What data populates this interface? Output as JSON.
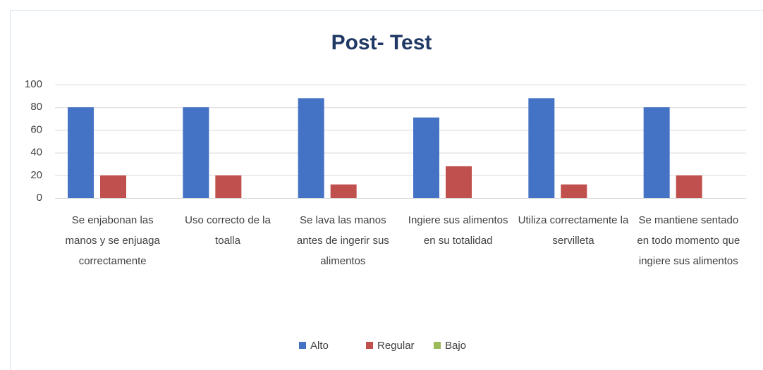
{
  "chart_data": {
    "type": "bar",
    "title": "Post- Test",
    "categories": [
      "Se enjabonan las manos y se enjuaga correctamente",
      "Uso correcto de la toalla",
      "Se lava las manos antes de ingerir sus alimentos",
      "Ingiere sus alimentos en su totalidad",
      "Utiliza correctamente la servilleta",
      "Se mantiene sentado en todo momento que ingiere sus alimentos"
    ],
    "series": [
      {
        "name": "Alto",
        "color": "#4472c4",
        "values": [
          80,
          80,
          88,
          71,
          88,
          80
        ]
      },
      {
        "name": "Regular",
        "color": "#c0504d",
        "values": [
          20,
          20,
          12,
          28,
          12,
          20
        ]
      },
      {
        "name": "Bajo",
        "color": "#9bbb59",
        "values": [
          0,
          0,
          0,
          0,
          0,
          0
        ]
      }
    ],
    "ylim": [
      0,
      100
    ],
    "yticks": [
      0,
      20,
      40,
      60,
      80,
      100
    ],
    "grid": true,
    "legend": "bottom"
  }
}
